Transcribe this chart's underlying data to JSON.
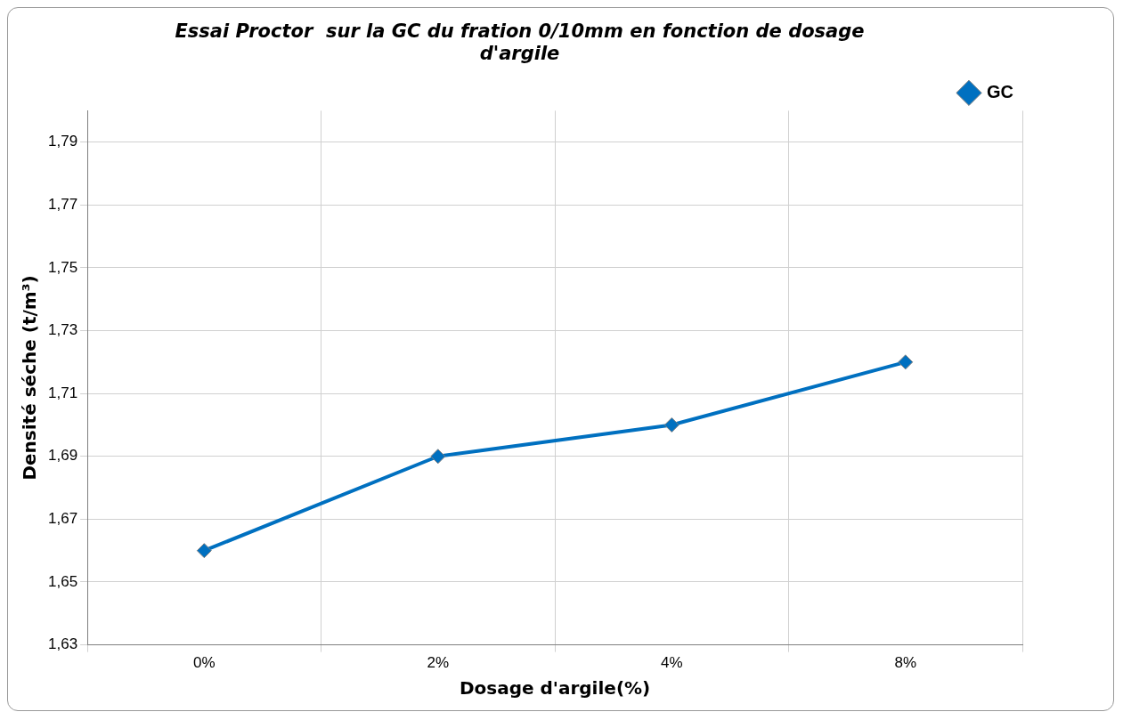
{
  "chart_data": {
    "type": "line",
    "title": "Essai Proctor  sur la GC du fration 0/10mm en fonction de dosage d'argile",
    "xlabel": "Dosage d'argile(%)",
    "ylabel": "Densité séche (t/m³)",
    "categories": [
      "0%",
      "2%",
      "4%",
      "8%"
    ],
    "series": [
      {
        "name": "GC",
        "color": "#0070c0",
        "values": [
          1.66,
          1.69,
          1.7,
          1.72
        ]
      }
    ],
    "ylim": [
      1.63,
      1.8
    ],
    "yticks": [
      {
        "value": 1.63,
        "label": "1,63"
      },
      {
        "value": 1.65,
        "label": "1,65"
      },
      {
        "value": 1.67,
        "label": "1,67"
      },
      {
        "value": 1.69,
        "label": "1,69"
      },
      {
        "value": 1.71,
        "label": "1,71"
      },
      {
        "value": 1.73,
        "label": "1,73"
      },
      {
        "value": 1.75,
        "label": "1,75"
      },
      {
        "value": 1.77,
        "label": "1,77"
      },
      {
        "value": 1.79,
        "label": "1,79"
      }
    ],
    "grid": true,
    "legend": "top right",
    "marker": "diamond",
    "line_style": "solid"
  }
}
